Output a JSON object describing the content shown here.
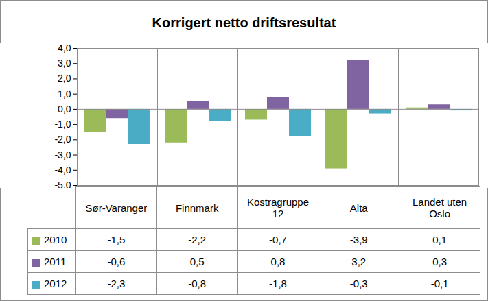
{
  "chart_data": {
    "type": "bar",
    "title": "Korrigert netto driftsresultat",
    "categories": [
      "Sør-Varanger",
      "Finnmark",
      "Kostragruppe 12",
      "Alta",
      "Landet uten Oslo"
    ],
    "series": [
      {
        "name": "2010",
        "color": "#9bbb59",
        "values": [
          -1.5,
          -2.2,
          -0.7,
          -3.9,
          0.1
        ],
        "value_labels": [
          "-1,5",
          "-2,2",
          "-0,7",
          "-3,9",
          "0,1"
        ]
      },
      {
        "name": "2011",
        "color": "#8064a2",
        "values": [
          -0.6,
          0.5,
          0.8,
          3.2,
          0.3
        ],
        "value_labels": [
          "-0,6",
          "0,5",
          "0,8",
          "3,2",
          "0,3"
        ]
      },
      {
        "name": "2012",
        "color": "#4bacc6",
        "values": [
          -2.3,
          -0.8,
          -1.8,
          -0.3,
          -0.1
        ],
        "value_labels": [
          "-2,3",
          "-0,8",
          "-1,8",
          "-0,3",
          "-0,1"
        ]
      }
    ],
    "ylim": [
      -5,
      4
    ],
    "yticks": [
      {
        "value": -5,
        "label": "-5,0"
      },
      {
        "value": -4,
        "label": "-4,0"
      },
      {
        "value": -3,
        "label": "-3,0"
      },
      {
        "value": -2,
        "label": "-2,0"
      },
      {
        "value": -1,
        "label": "-1,0"
      },
      {
        "value": 0,
        "label": "0,0"
      },
      {
        "value": 1,
        "label": "1,0"
      },
      {
        "value": 2,
        "label": "2,0"
      },
      {
        "value": 3,
        "label": "3,0"
      },
      {
        "value": 4,
        "label": "4,0"
      }
    ],
    "grid": false
  }
}
